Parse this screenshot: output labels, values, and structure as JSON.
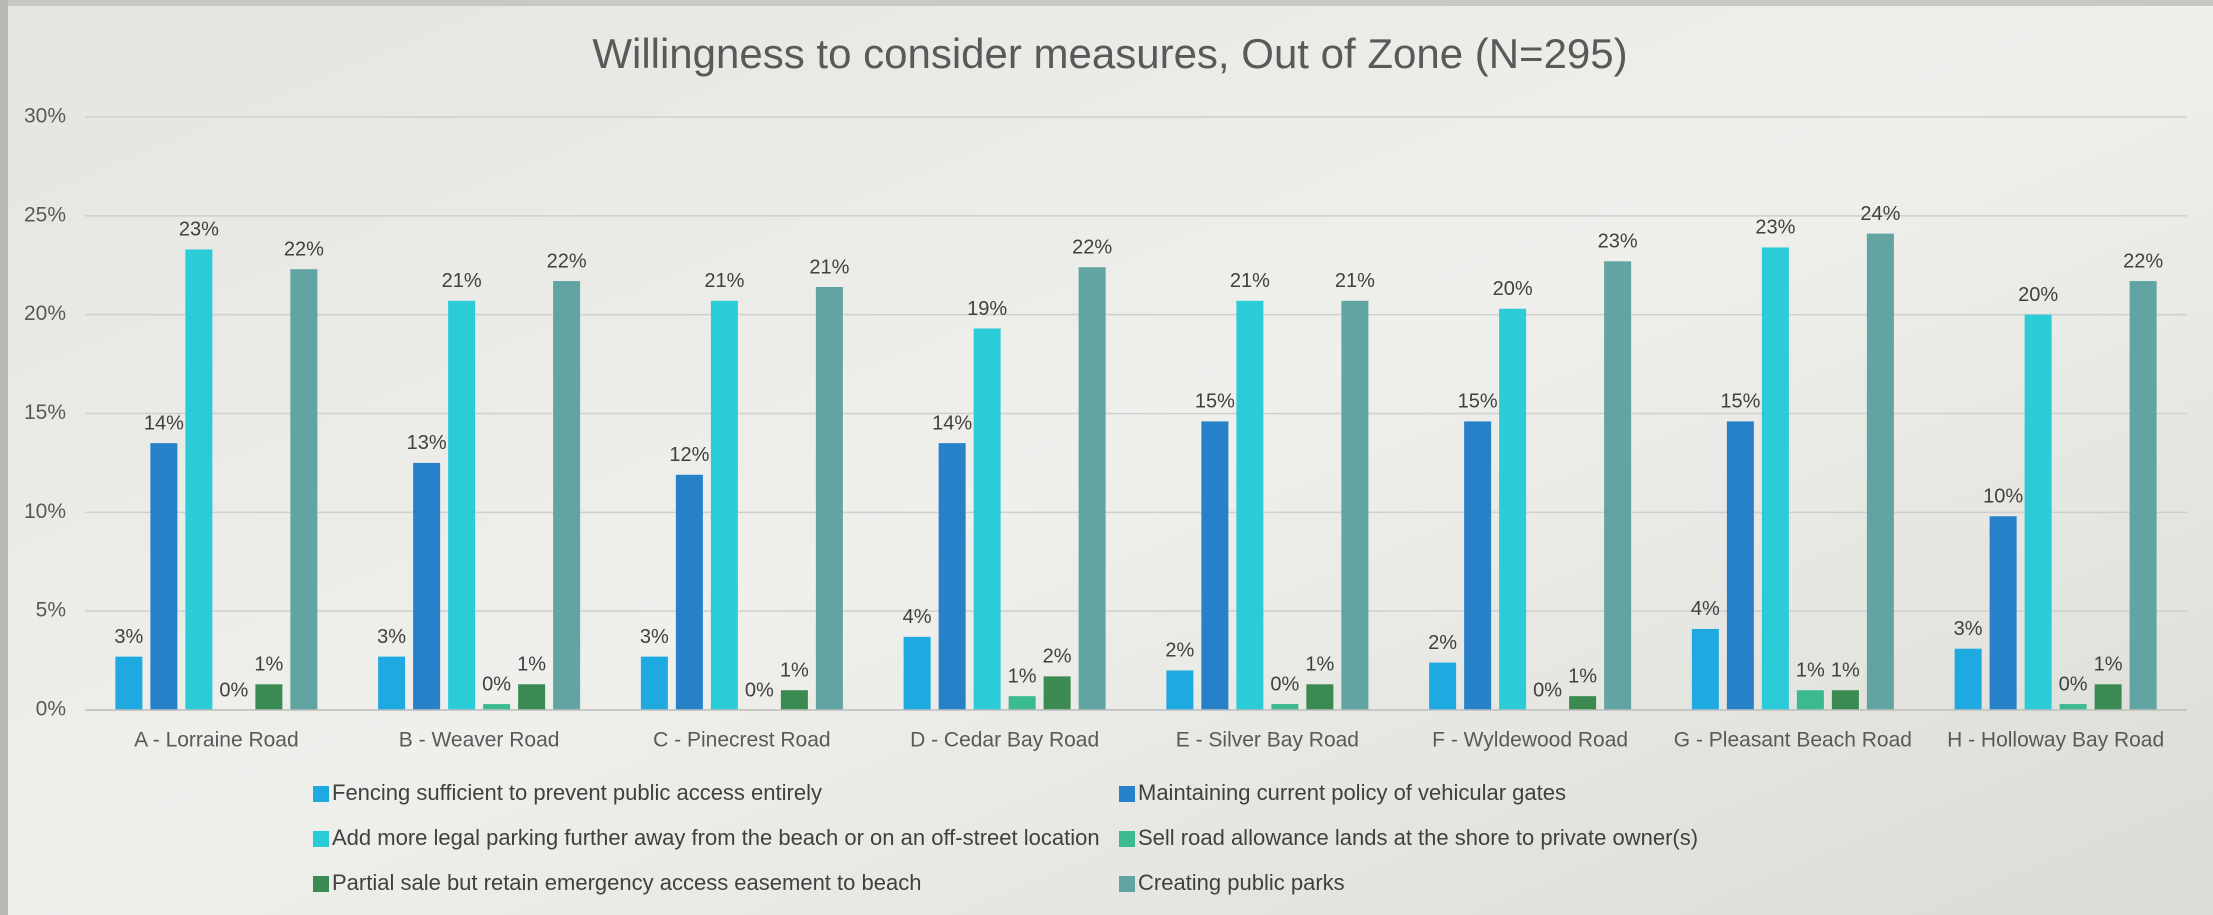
{
  "chart_data": {
    "type": "bar",
    "title": "Willingness to consider measures, Out of Zone (N=295)",
    "categories": [
      "A - Lorraine Road",
      "B - Weaver Road",
      "C - Pinecrest Road",
      "D - Cedar Bay Road",
      "E - Silver Bay Road",
      "F - Wyldewood Road",
      "G - Pleasant Beach Road",
      "H - Holloway Bay Road"
    ],
    "series": [
      {
        "name": "Fencing sufficient to prevent public access entirely",
        "color": "#1ea9e1",
        "values": [
          2.7,
          2.7,
          2.7,
          3.7,
          2.0,
          2.4,
          4.1,
          3.1
        ],
        "value_labels": [
          "3%",
          "3%",
          "3%",
          "4%",
          "2%",
          "2%",
          "4%",
          "3%"
        ]
      },
      {
        "name": "Maintaining current policy of vehicular gates",
        "color": "#2681c8",
        "values": [
          13.5,
          12.5,
          11.9,
          13.5,
          14.6,
          14.6,
          14.6,
          9.8
        ],
        "value_labels": [
          "14%",
          "13%",
          "12%",
          "14%",
          "15%",
          "15%",
          "15%",
          "10%"
        ]
      },
      {
        "name": "Add more legal parking further away from the beach or on an off-street location",
        "color": "#2bcbd7",
        "values": [
          23.3,
          20.7,
          20.7,
          19.3,
          20.7,
          20.3,
          23.4,
          20.0
        ],
        "value_labels": [
          "23%",
          "21%",
          "21%",
          "19%",
          "21%",
          "20%",
          "23%",
          "20%"
        ]
      },
      {
        "name": "Sell road allowance lands at the shore to private owner(s)",
        "color": "#3cba8f",
        "values": [
          0,
          0.3,
          0,
          0.7,
          0.3,
          0,
          1.0,
          0.3
        ],
        "value_labels": [
          "0%",
          "0%",
          "0%",
          "1%",
          "0%",
          "0%",
          "1%",
          "0%"
        ]
      },
      {
        "name": "Partial sale but retain emergency access easement to beach",
        "color": "#3a8a52",
        "values": [
          1.3,
          1.3,
          1.0,
          1.7,
          1.3,
          0.7,
          1.0,
          1.3
        ],
        "value_labels": [
          "1%",
          "1%",
          "1%",
          "2%",
          "1%",
          "1%",
          "1%",
          "1%"
        ]
      },
      {
        "name": "Creating public parks",
        "color": "#61a4a1",
        "values": [
          22.3,
          21.7,
          21.4,
          22.4,
          20.7,
          22.7,
          24.1,
          21.7
        ],
        "value_labels": [
          "22%",
          "22%",
          "21%",
          "22%",
          "21%",
          "23%",
          "24%",
          "22%"
        ]
      }
    ],
    "ylim": [
      0,
      30
    ],
    "yticks": [
      {
        "value": 0,
        "label": "0%"
      },
      {
        "value": 5,
        "label": "5%"
      },
      {
        "value": 10,
        "label": "10%"
      },
      {
        "value": 15,
        "label": "15%"
      },
      {
        "value": 20,
        "label": "20%"
      },
      {
        "value": 25,
        "label": "25%"
      },
      {
        "value": 30,
        "label": "30%"
      }
    ],
    "grid": true,
    "legend": "bottom"
  }
}
